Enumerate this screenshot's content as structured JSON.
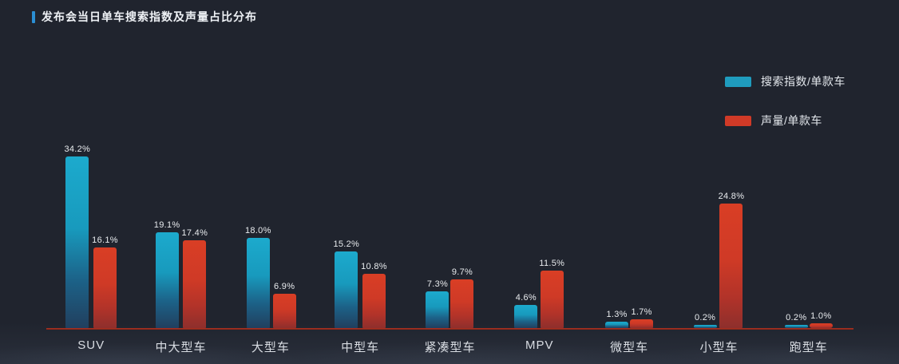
{
  "title": {
    "text": "发布会当日单车搜索指数及声量占比分布"
  },
  "legend": [
    {
      "label": "搜索指数/单款车",
      "color": "#1f9cbe"
    },
    {
      "label": "声量/单款车",
      "color": "#d03a27"
    }
  ],
  "colors": {
    "background": "#20242e",
    "title_marker": "#2b8fd4",
    "series_search_top": "#1caacd",
    "series_search_bottom": "#213f5e",
    "series_voice_top": "#d93e25",
    "series_voice_bottom": "#8e2f2c",
    "axis_line": "#a62d21",
    "label_text": "#d9dde3",
    "value_text": "#e8ebee"
  },
  "chart_data": {
    "type": "bar",
    "title": "发布会当日单车搜索指数及声量占比分布",
    "categories": [
      "SUV",
      "中大型车",
      "大型车",
      "中型车",
      "紧凑型车",
      "MPV",
      "微型车",
      "小型车",
      "跑型车"
    ],
    "series": [
      {
        "name": "搜索指数/单款车",
        "color": "#1f9cbe",
        "values": [
          34.2,
          19.1,
          18.0,
          15.2,
          7.3,
          4.6,
          1.3,
          0.2,
          0.2
        ],
        "value_labels": [
          "34.2%",
          "19.1%",
          "18.0%",
          "15.2%",
          "7.3%",
          "4.6%",
          "1.3%",
          "0.2%",
          "0.2%"
        ]
      },
      {
        "name": "声量/单款车",
        "color": "#d03a27",
        "values": [
          16.1,
          17.4,
          6.9,
          10.8,
          9.7,
          11.5,
          1.7,
          24.8,
          1.0
        ],
        "value_labels": [
          "16.1%",
          "17.4%",
          "6.9%",
          "10.8%",
          "9.7%",
          "11.5%",
          "1.7%",
          "24.8%",
          "1.0%"
        ]
      }
    ],
    "unit": "%",
    "xlabel": "",
    "ylabel": "",
    "ylim": [
      0,
      36
    ],
    "grid": false,
    "y_axis_visible": false,
    "legend_position": "top-right",
    "bar_value_labels_visible": true
  }
}
